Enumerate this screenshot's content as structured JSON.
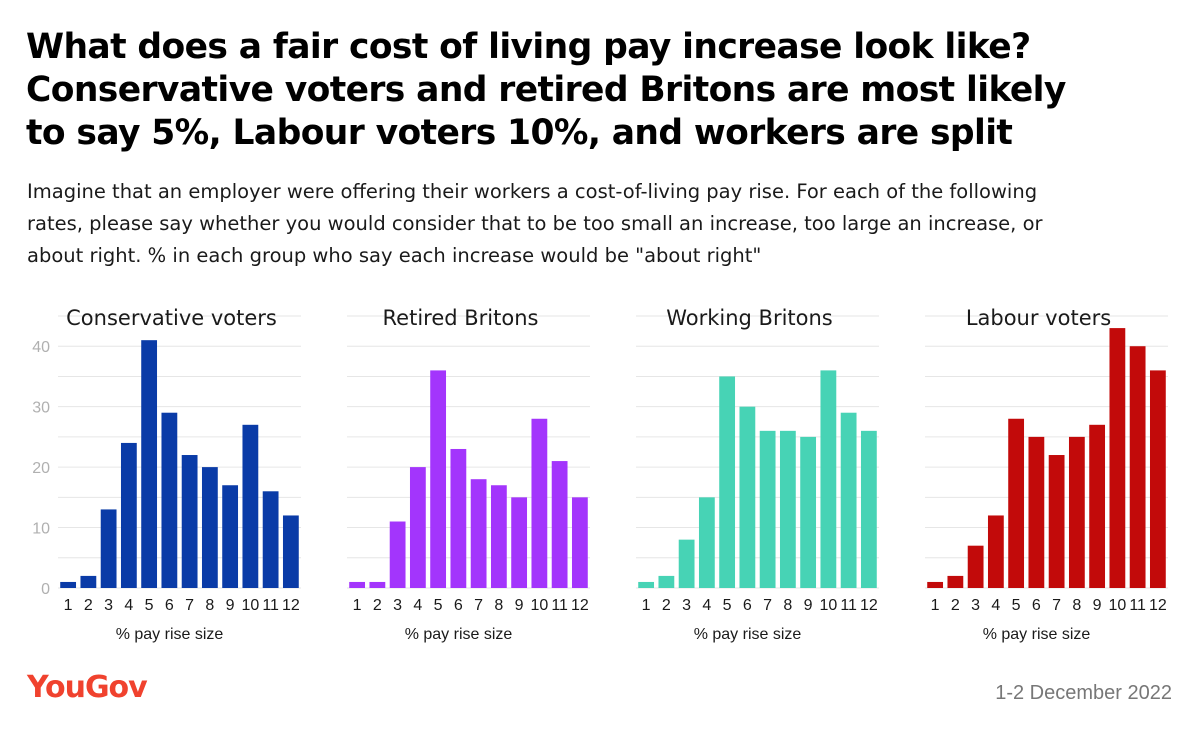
{
  "title_lines": [
    "What does a fair cost of living pay increase look like?",
    "Conservative voters and retired Britons are most likely",
    "to say 5%, Labour voters 10%, and workers are split"
  ],
  "subtitle_lines": [
    "Imagine that an employer were offering their workers a cost-of-living pay rise. For each of the following",
    "rates, please say whether you would consider that to be too small an increase, too large an increase, or",
    "about right. % in each group who say each increase would be \"about right\""
  ],
  "brand": "YouGov",
  "date": "1-2 December 2022",
  "chart_data": [
    {
      "type": "bar",
      "title": "Conservative voters",
      "xlabel": "% pay rise size",
      "categories": [
        "1",
        "2",
        "3",
        "4",
        "5",
        "6",
        "7",
        "8",
        "9",
        "10",
        "11",
        "12"
      ],
      "values": [
        1,
        2,
        13,
        24,
        41,
        29,
        22,
        20,
        17,
        27,
        16,
        12
      ],
      "color": "#0a3ba7",
      "ylim": [
        0,
        45
      ],
      "yticks": [
        0,
        10,
        20,
        30,
        40
      ],
      "grid": true
    },
    {
      "type": "bar",
      "title": "Retired Britons",
      "xlabel": "% pay rise size",
      "categories": [
        "1",
        "2",
        "3",
        "4",
        "5",
        "6",
        "7",
        "8",
        "9",
        "10",
        "11",
        "12"
      ],
      "values": [
        1,
        1,
        11,
        20,
        36,
        23,
        18,
        17,
        15,
        28,
        21,
        15
      ],
      "color": "#a335fc",
      "ylim": [
        0,
        45
      ],
      "grid": true
    },
    {
      "type": "bar",
      "title": "Working Britons",
      "xlabel": "% pay rise size",
      "categories": [
        "1",
        "2",
        "3",
        "4",
        "5",
        "6",
        "7",
        "8",
        "9",
        "10",
        "11",
        "12"
      ],
      "values": [
        1,
        2,
        8,
        15,
        35,
        30,
        26,
        26,
        25,
        36,
        29,
        26
      ],
      "color": "#47d3b5",
      "ylim": [
        0,
        45
      ],
      "grid": true
    },
    {
      "type": "bar",
      "title": "Labour voters",
      "xlabel": "% pay rise size",
      "categories": [
        "1",
        "2",
        "3",
        "4",
        "5",
        "6",
        "7",
        "8",
        "9",
        "10",
        "11",
        "12"
      ],
      "values": [
        1,
        2,
        7,
        12,
        28,
        25,
        22,
        25,
        27,
        43,
        40,
        36
      ],
      "color": "#c20a0a",
      "ylim": [
        0,
        45
      ],
      "grid": true
    }
  ]
}
